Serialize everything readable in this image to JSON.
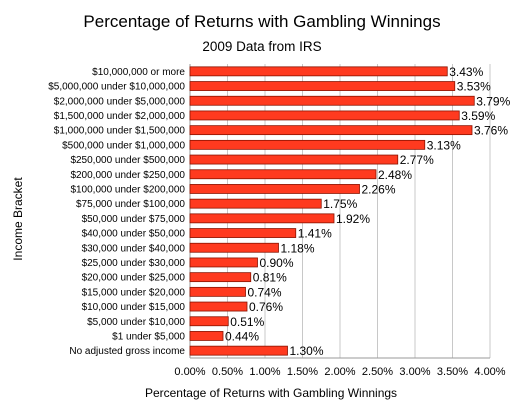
{
  "chart_data": {
    "type": "bar",
    "orientation": "horizontal",
    "title": "Percentage of Returns with Gambling Winnings",
    "subtitle": "2009 Data from IRS",
    "xlabel": "Percentage of Returns with Gambling Winnings",
    "ylabel": "Income Bracket",
    "xlim": [
      0,
      4
    ],
    "x_ticks": [
      "0.00%",
      "0.50%",
      "1.00%",
      "1.50%",
      "2.00%",
      "2.50%",
      "3.00%",
      "3.50%",
      "4.00%"
    ],
    "grid": "vertical",
    "bar_color": "#ff3a1f",
    "bar_edge_color": "#8a1200",
    "categories": [
      "$10,000,000 or more",
      "$5,000,000 under $10,000,000",
      "$2,000,000 under $5,000,000",
      "$1,500,000 under $2,000,000",
      "$1,000,000 under $1,500,000",
      "$500,000 under $1,000,000",
      "$250,000 under $500,000",
      "$200,000 under $250,000",
      "$100,000 under $200,000",
      "$75,000 under $100,000",
      "$50,000 under $75,000",
      "$40,000 under $50,000",
      "$30,000 under $40,000",
      "$25,000 under $30,000",
      "$20,000 under $25,000",
      "$15,000 under $20,000",
      "$10,000 under $15,000",
      "$5,000 under $10,000",
      "$1 under $5,000",
      "No adjusted gross income"
    ],
    "values": [
      3.43,
      3.53,
      3.79,
      3.59,
      3.76,
      3.13,
      2.77,
      2.48,
      2.26,
      1.75,
      1.92,
      1.41,
      1.18,
      0.9,
      0.81,
      0.74,
      0.76,
      0.51,
      0.44,
      1.3
    ],
    "value_labels": [
      "3.43%",
      "3.53%",
      "3.79%",
      "3.59%",
      "3.76%",
      "3.13%",
      "2.77%",
      "2.48%",
      "2.26%",
      "1.75%",
      "1.92%",
      "1.41%",
      "1.18%",
      "0.90%",
      "0.81%",
      "0.74%",
      "0.76%",
      "0.51%",
      "0.44%",
      "1.30%"
    ]
  }
}
